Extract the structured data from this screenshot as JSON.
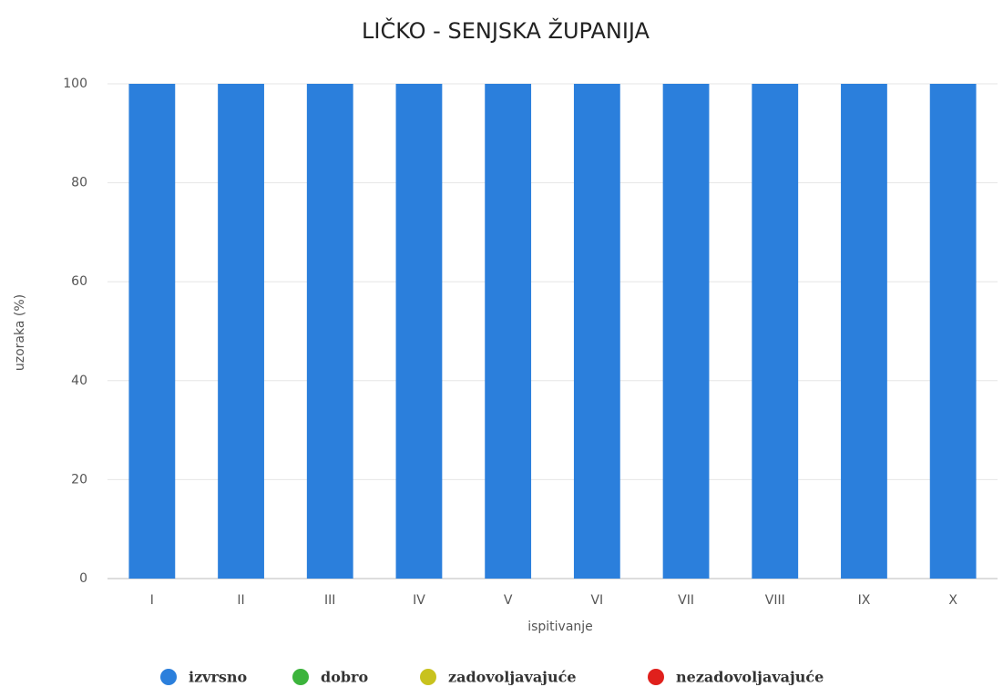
{
  "chart_data": {
    "type": "bar",
    "stacked": true,
    "title": "LIČKO - SENJSKA ŽUPANIJA",
    "x_label": "ispitivanje",
    "y_label": "uzoraka (%)",
    "categories": [
      "I",
      "II",
      "III",
      "IV",
      "V",
      "VI",
      "VII",
      "VIII",
      "IX",
      "X"
    ],
    "series": [
      {
        "name": "izvrsno",
        "color": "#2b7fdc",
        "values": [
          100,
          100,
          100,
          100,
          100,
          100,
          100,
          100,
          100,
          100
        ]
      },
      {
        "name": "dobro",
        "color": "#3cb43c",
        "values": [
          0,
          0,
          0,
          0,
          0,
          0,
          0,
          0,
          0,
          0
        ]
      },
      {
        "name": "zadovoljavajuće",
        "color": "#c8c21e",
        "values": [
          0,
          0,
          0,
          0,
          0,
          0,
          0,
          0,
          0,
          0
        ]
      },
      {
        "name": "nezadovoljavajuće",
        "color": "#e0201c",
        "values": [
          0,
          0,
          0,
          0,
          0,
          0,
          0,
          0,
          0,
          0
        ]
      }
    ],
    "ylim": [
      0,
      100
    ],
    "yticks": [
      0,
      20,
      40,
      60,
      80,
      100
    ],
    "grid": true,
    "legend": "bottom"
  }
}
